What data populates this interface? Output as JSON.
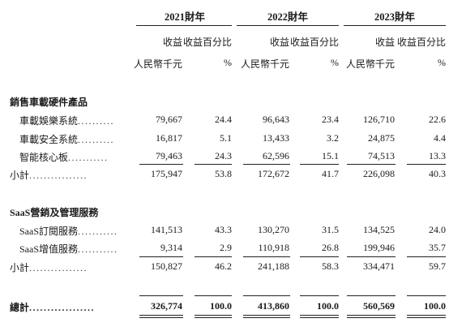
{
  "years": [
    "2021財年",
    "2022財年",
    "2023財年"
  ],
  "col_headers": {
    "revenue": "收益",
    "pct": "收益百分比",
    "unit_revenue": "人民幣千元",
    "unit_pct": "%"
  },
  "sections": [
    {
      "title": "銷售車載硬件產品",
      "rows": [
        {
          "label": "車載娛樂系統",
          "dots": "..........",
          "v": [
            "79,667",
            "24.4",
            "96,643",
            "23.4",
            "126,710",
            "22.6"
          ]
        },
        {
          "label": "車載安全系統",
          "dots": "..........",
          "v": [
            "16,817",
            "5.1",
            "13,433",
            "3.2",
            "24,875",
            "4.4"
          ]
        },
        {
          "label": "智能核心板",
          "dots": "...........",
          "v": [
            "79,463",
            "24.3",
            "62,596",
            "15.1",
            "74,513",
            "13.3"
          ]
        }
      ],
      "subtotal": {
        "label": "小計",
        "dots": "................",
        "v": [
          "175,947",
          "53.8",
          "172,672",
          "41.7",
          "226,098",
          "40.3"
        ]
      }
    },
    {
      "title": "SaaS營銷及管理服務",
      "rows": [
        {
          "label": "SaaS訂閱服務",
          "dots": "...........",
          "v": [
            "141,513",
            "43.3",
            "130,270",
            "31.5",
            "134,525",
            "24.0"
          ]
        },
        {
          "label": "SaaS增值服務",
          "dots": "...........",
          "v": [
            "9,314",
            "2.9",
            "110,918",
            "26.8",
            "199,946",
            "35.7"
          ]
        }
      ],
      "subtotal": {
        "label": "小計",
        "dots": "................",
        "v": [
          "150,827",
          "46.2",
          "241,188",
          "58.3",
          "334,471",
          "59.7"
        ]
      }
    }
  ],
  "total": {
    "label": "總計",
    "dots": "..................",
    "v": [
      "326,774",
      "100.0",
      "413,860",
      "100.0",
      "560,569",
      "100.0"
    ]
  }
}
